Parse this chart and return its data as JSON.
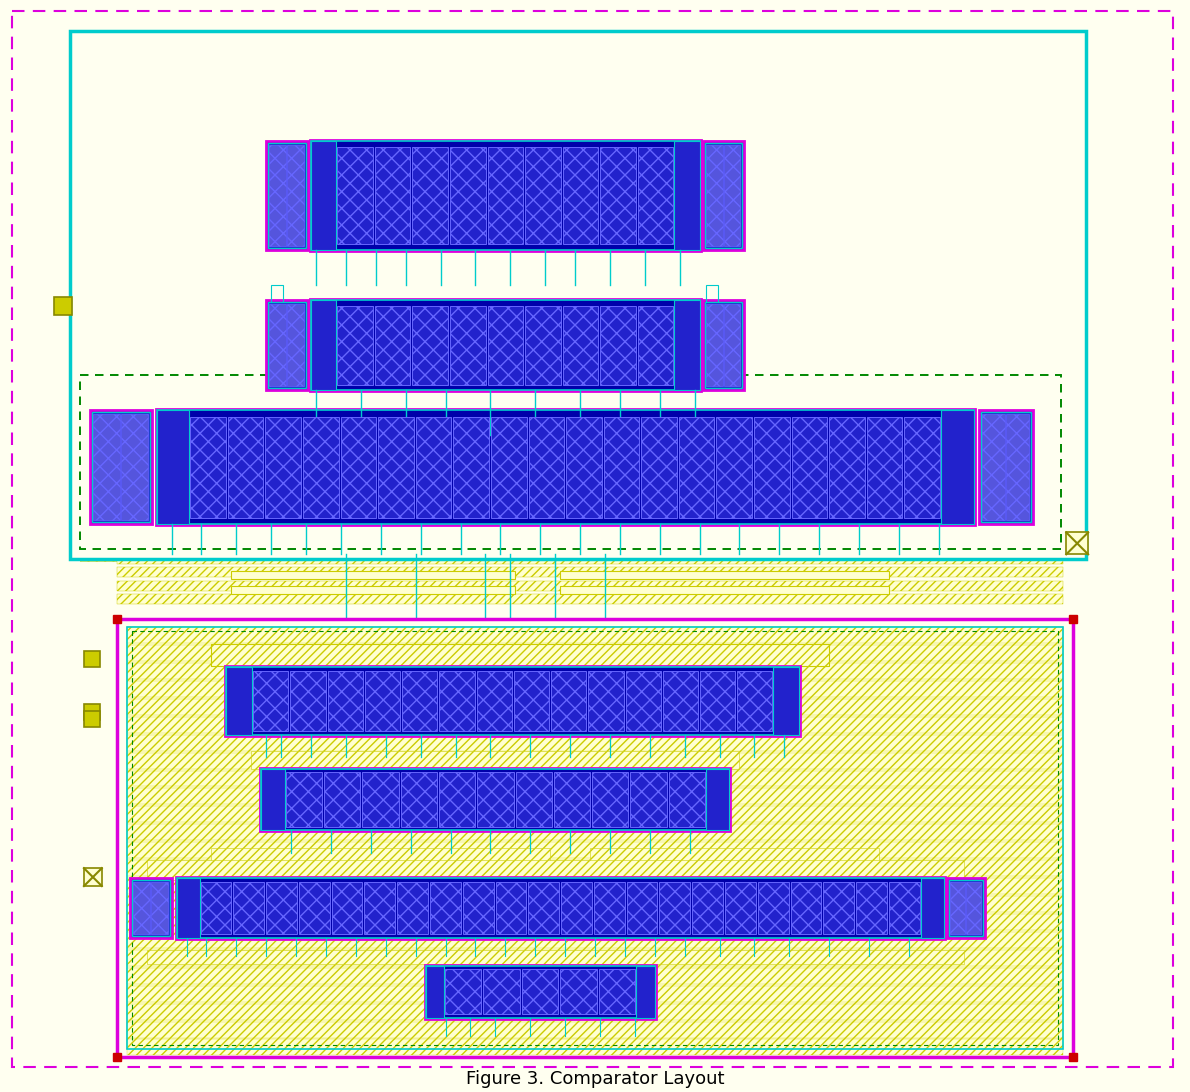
{
  "bg": "#fffff0",
  "cyan": "#00cccc",
  "magenta": "#dd00dd",
  "yellow": "#cccc00",
  "green": "#008800",
  "blue_dark": "#0000aa",
  "blue_mid": "#2222cc",
  "blue_light": "#5555dd",
  "hatch_fc": "#ffffd0",
  "hatch_ec": "#cccc00",
  "wire_cyan": "#00cccc",
  "wire_yellow": "#cccc00",
  "red": "#cc0000",
  "layout": {
    "fig_w": 11.9,
    "fig_h": 10.92,
    "dpi": 100,
    "xmin": 0,
    "xmax": 1190,
    "ymin": 0,
    "ymax": 1092
  }
}
